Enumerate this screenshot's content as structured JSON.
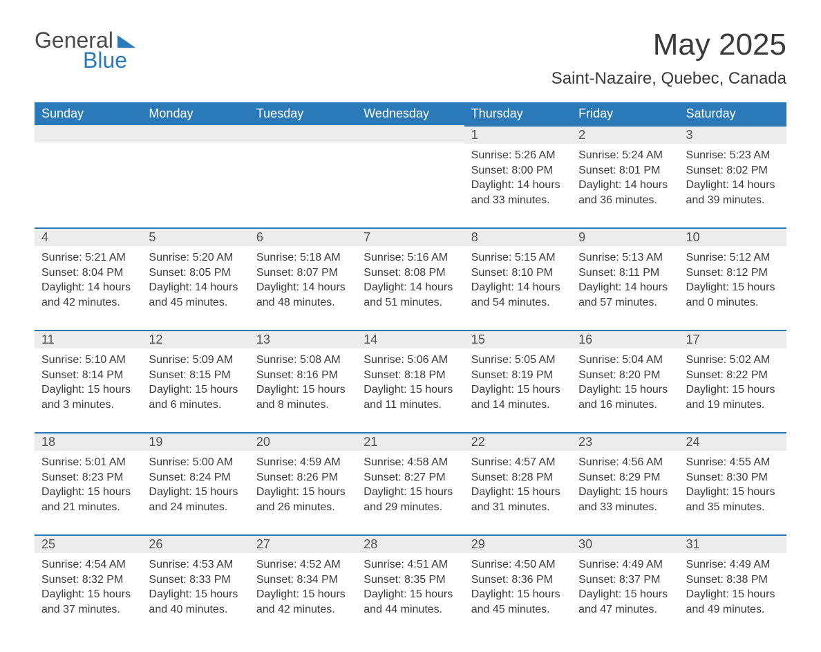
{
  "logo": {
    "general": "General",
    "blue": "Blue"
  },
  "title": "May 2025",
  "location": "Saint-Nazaire, Quebec, Canada",
  "day_headers": [
    "Sunday",
    "Monday",
    "Tuesday",
    "Wednesday",
    "Thursday",
    "Friday",
    "Saturday"
  ],
  "colors": {
    "header_bg": "#2a7ab9",
    "header_fg": "#ffffff",
    "daynum_bg": "#ececec",
    "border_top": "#2a7ab9",
    "text": "#3a3a3a"
  },
  "weeks": [
    [
      null,
      null,
      null,
      null,
      {
        "n": "1",
        "sr": "Sunrise: 5:26 AM",
        "ss": "Sunset: 8:00 PM",
        "dl": "Daylight: 14 hours and 33 minutes."
      },
      {
        "n": "2",
        "sr": "Sunrise: 5:24 AM",
        "ss": "Sunset: 8:01 PM",
        "dl": "Daylight: 14 hours and 36 minutes."
      },
      {
        "n": "3",
        "sr": "Sunrise: 5:23 AM",
        "ss": "Sunset: 8:02 PM",
        "dl": "Daylight: 14 hours and 39 minutes."
      }
    ],
    [
      {
        "n": "4",
        "sr": "Sunrise: 5:21 AM",
        "ss": "Sunset: 8:04 PM",
        "dl": "Daylight: 14 hours and 42 minutes."
      },
      {
        "n": "5",
        "sr": "Sunrise: 5:20 AM",
        "ss": "Sunset: 8:05 PM",
        "dl": "Daylight: 14 hours and 45 minutes."
      },
      {
        "n": "6",
        "sr": "Sunrise: 5:18 AM",
        "ss": "Sunset: 8:07 PM",
        "dl": "Daylight: 14 hours and 48 minutes."
      },
      {
        "n": "7",
        "sr": "Sunrise: 5:16 AM",
        "ss": "Sunset: 8:08 PM",
        "dl": "Daylight: 14 hours and 51 minutes."
      },
      {
        "n": "8",
        "sr": "Sunrise: 5:15 AM",
        "ss": "Sunset: 8:10 PM",
        "dl": "Daylight: 14 hours and 54 minutes."
      },
      {
        "n": "9",
        "sr": "Sunrise: 5:13 AM",
        "ss": "Sunset: 8:11 PM",
        "dl": "Daylight: 14 hours and 57 minutes."
      },
      {
        "n": "10",
        "sr": "Sunrise: 5:12 AM",
        "ss": "Sunset: 8:12 PM",
        "dl": "Daylight: 15 hours and 0 minutes."
      }
    ],
    [
      {
        "n": "11",
        "sr": "Sunrise: 5:10 AM",
        "ss": "Sunset: 8:14 PM",
        "dl": "Daylight: 15 hours and 3 minutes."
      },
      {
        "n": "12",
        "sr": "Sunrise: 5:09 AM",
        "ss": "Sunset: 8:15 PM",
        "dl": "Daylight: 15 hours and 6 minutes."
      },
      {
        "n": "13",
        "sr": "Sunrise: 5:08 AM",
        "ss": "Sunset: 8:16 PM",
        "dl": "Daylight: 15 hours and 8 minutes."
      },
      {
        "n": "14",
        "sr": "Sunrise: 5:06 AM",
        "ss": "Sunset: 8:18 PM",
        "dl": "Daylight: 15 hours and 11 minutes."
      },
      {
        "n": "15",
        "sr": "Sunrise: 5:05 AM",
        "ss": "Sunset: 8:19 PM",
        "dl": "Daylight: 15 hours and 14 minutes."
      },
      {
        "n": "16",
        "sr": "Sunrise: 5:04 AM",
        "ss": "Sunset: 8:20 PM",
        "dl": "Daylight: 15 hours and 16 minutes."
      },
      {
        "n": "17",
        "sr": "Sunrise: 5:02 AM",
        "ss": "Sunset: 8:22 PM",
        "dl": "Daylight: 15 hours and 19 minutes."
      }
    ],
    [
      {
        "n": "18",
        "sr": "Sunrise: 5:01 AM",
        "ss": "Sunset: 8:23 PM",
        "dl": "Daylight: 15 hours and 21 minutes."
      },
      {
        "n": "19",
        "sr": "Sunrise: 5:00 AM",
        "ss": "Sunset: 8:24 PM",
        "dl": "Daylight: 15 hours and 24 minutes."
      },
      {
        "n": "20",
        "sr": "Sunrise: 4:59 AM",
        "ss": "Sunset: 8:26 PM",
        "dl": "Daylight: 15 hours and 26 minutes."
      },
      {
        "n": "21",
        "sr": "Sunrise: 4:58 AM",
        "ss": "Sunset: 8:27 PM",
        "dl": "Daylight: 15 hours and 29 minutes."
      },
      {
        "n": "22",
        "sr": "Sunrise: 4:57 AM",
        "ss": "Sunset: 8:28 PM",
        "dl": "Daylight: 15 hours and 31 minutes."
      },
      {
        "n": "23",
        "sr": "Sunrise: 4:56 AM",
        "ss": "Sunset: 8:29 PM",
        "dl": "Daylight: 15 hours and 33 minutes."
      },
      {
        "n": "24",
        "sr": "Sunrise: 4:55 AM",
        "ss": "Sunset: 8:30 PM",
        "dl": "Daylight: 15 hours and 35 minutes."
      }
    ],
    [
      {
        "n": "25",
        "sr": "Sunrise: 4:54 AM",
        "ss": "Sunset: 8:32 PM",
        "dl": "Daylight: 15 hours and 37 minutes."
      },
      {
        "n": "26",
        "sr": "Sunrise: 4:53 AM",
        "ss": "Sunset: 8:33 PM",
        "dl": "Daylight: 15 hours and 40 minutes."
      },
      {
        "n": "27",
        "sr": "Sunrise: 4:52 AM",
        "ss": "Sunset: 8:34 PM",
        "dl": "Daylight: 15 hours and 42 minutes."
      },
      {
        "n": "28",
        "sr": "Sunrise: 4:51 AM",
        "ss": "Sunset: 8:35 PM",
        "dl": "Daylight: 15 hours and 44 minutes."
      },
      {
        "n": "29",
        "sr": "Sunrise: 4:50 AM",
        "ss": "Sunset: 8:36 PM",
        "dl": "Daylight: 15 hours and 45 minutes."
      },
      {
        "n": "30",
        "sr": "Sunrise: 4:49 AM",
        "ss": "Sunset: 8:37 PM",
        "dl": "Daylight: 15 hours and 47 minutes."
      },
      {
        "n": "31",
        "sr": "Sunrise: 4:49 AM",
        "ss": "Sunset: 8:38 PM",
        "dl": "Daylight: 15 hours and 49 minutes."
      }
    ]
  ]
}
